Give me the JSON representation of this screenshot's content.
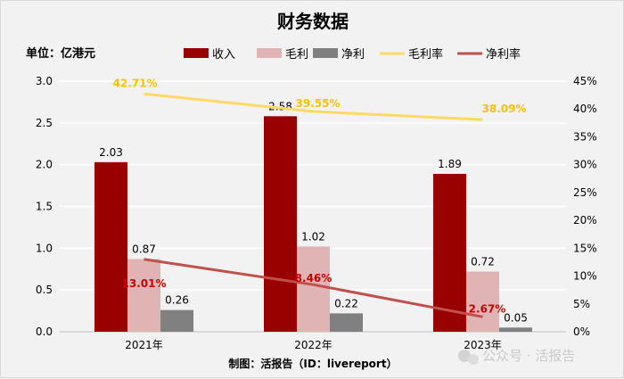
{
  "chart_data": {
    "type": "bar",
    "title": "财务数据",
    "unit_label": "单位：亿港元",
    "categories": [
      "2021年",
      "2022年",
      "2023年"
    ],
    "series": [
      {
        "name": "收入",
        "type": "bar",
        "axis": "left",
        "color": "#990000",
        "values": [
          2.03,
          2.58,
          1.89
        ],
        "labels": [
          "2.03",
          "2.58",
          "1.89"
        ]
      },
      {
        "name": "毛利",
        "type": "bar",
        "axis": "left",
        "color": "#e0b4b4",
        "values": [
          0.87,
          1.02,
          0.72
        ],
        "labels": [
          "0.87",
          "1.02",
          "0.72"
        ]
      },
      {
        "name": "净利",
        "type": "bar",
        "axis": "left",
        "color": "#808080",
        "values": [
          0.26,
          0.22,
          0.05
        ],
        "labels": [
          "0.26",
          "0.22",
          "0.05"
        ]
      },
      {
        "name": "毛利率",
        "type": "line",
        "axis": "right",
        "color": "#ffd966",
        "label_color": "#ffc000",
        "values": [
          42.71,
          39.55,
          38.09
        ],
        "labels": [
          "42.71%",
          "39.55%",
          "38.09%"
        ]
      },
      {
        "name": "净利率",
        "type": "line",
        "axis": "right",
        "color": "#c0504d",
        "label_color": "#cc0000",
        "values": [
          13.01,
          8.46,
          2.67
        ],
        "labels": [
          "13.01%",
          "8.46%",
          "2.67%"
        ]
      }
    ],
    "y_left": {
      "range": [
        0,
        3.0
      ],
      "ticks": [
        "0.0",
        "0.5",
        "1.0",
        "1.5",
        "2.0",
        "2.5",
        "3.0"
      ]
    },
    "y_right": {
      "range": [
        0,
        45
      ],
      "ticks": [
        "0%",
        "5%",
        "10%",
        "15%",
        "20%",
        "25%",
        "30%",
        "35%",
        "40%",
        "45%"
      ]
    },
    "grid": true,
    "legend": "top",
    "source": "制图：活报告（ID：livereport）"
  },
  "watermark": "公众号 · 活报告"
}
